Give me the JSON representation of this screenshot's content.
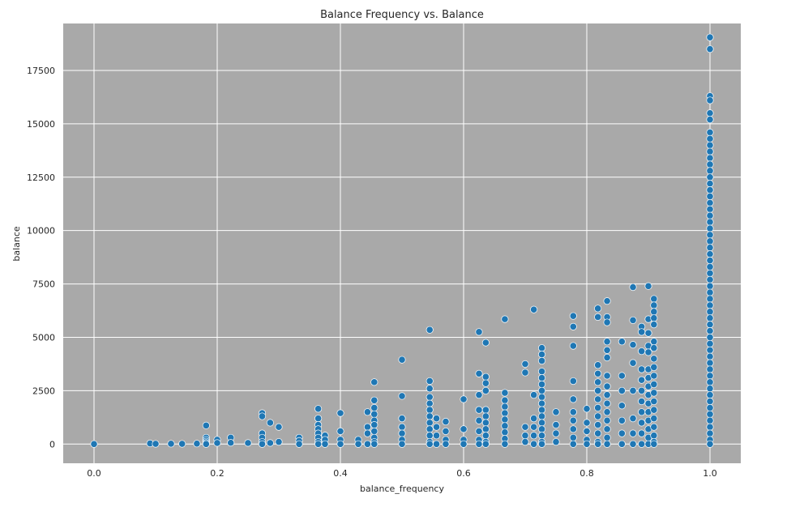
{
  "chart_data": {
    "type": "scatter",
    "title": "Balance Frequency vs. Balance",
    "xlabel": "balance_frequency",
    "ylabel": "balance",
    "xlim": [
      -0.05,
      1.05
    ],
    "ylim": [
      -900,
      19700
    ],
    "xticks": [
      0.0,
      0.2,
      0.4,
      0.6,
      0.8,
      1.0
    ],
    "xtick_labels": [
      "0.0",
      "0.2",
      "0.4",
      "0.6",
      "0.8",
      "1.0"
    ],
    "yticks": [
      0,
      2500,
      5000,
      7500,
      10000,
      12500,
      15000,
      17500
    ],
    "ytick_labels": [
      "0",
      "2500",
      "5000",
      "7500",
      "10000",
      "12500",
      "15000",
      "17500"
    ],
    "grid": true,
    "colors": {
      "background": "#a9a9a9",
      "grid": "#ffffff",
      "marker": "#1f77b4",
      "marker_edge": "#ffffff"
    },
    "series": [
      {
        "points": [
          [
            0.0,
            0
          ],
          [
            0.091,
            30
          ],
          [
            0.1,
            10
          ],
          [
            0.125,
            15
          ],
          [
            0.143,
            10
          ],
          [
            0.167,
            20
          ],
          [
            0.182,
            870
          ],
          [
            0.182,
            300
          ],
          [
            0.182,
            200
          ],
          [
            0.182,
            120
          ],
          [
            0.182,
            50
          ],
          [
            0.182,
            0
          ],
          [
            0.2,
            200
          ],
          [
            0.2,
            50
          ],
          [
            0.222,
            300
          ],
          [
            0.222,
            60
          ],
          [
            0.25,
            50
          ],
          [
            0.273,
            1450
          ],
          [
            0.273,
            1300
          ],
          [
            0.273,
            500
          ],
          [
            0.273,
            300
          ],
          [
            0.273,
            100
          ],
          [
            0.273,
            0
          ],
          [
            0.286,
            1000
          ],
          [
            0.286,
            50
          ],
          [
            0.3,
            800
          ],
          [
            0.3,
            100
          ],
          [
            0.333,
            300
          ],
          [
            0.333,
            150
          ],
          [
            0.333,
            0
          ],
          [
            0.364,
            1650
          ],
          [
            0.364,
            1200
          ],
          [
            0.364,
            900
          ],
          [
            0.364,
            700
          ],
          [
            0.364,
            500
          ],
          [
            0.364,
            300
          ],
          [
            0.364,
            100
          ],
          [
            0.364,
            0
          ],
          [
            0.375,
            400
          ],
          [
            0.375,
            200
          ],
          [
            0.375,
            0
          ],
          [
            0.4,
            1450
          ],
          [
            0.4,
            600
          ],
          [
            0.4,
            200
          ],
          [
            0.4,
            0
          ],
          [
            0.429,
            200
          ],
          [
            0.429,
            0
          ],
          [
            0.444,
            1500
          ],
          [
            0.444,
            800
          ],
          [
            0.444,
            500
          ],
          [
            0.444,
            0
          ],
          [
            0.455,
            2900
          ],
          [
            0.455,
            2050
          ],
          [
            0.455,
            1700
          ],
          [
            0.455,
            1400
          ],
          [
            0.455,
            1100
          ],
          [
            0.455,
            900
          ],
          [
            0.455,
            600
          ],
          [
            0.455,
            300
          ],
          [
            0.455,
            100
          ],
          [
            0.455,
            0
          ],
          [
            0.5,
            3950
          ],
          [
            0.5,
            2250
          ],
          [
            0.5,
            1200
          ],
          [
            0.5,
            800
          ],
          [
            0.5,
            500
          ],
          [
            0.5,
            200
          ],
          [
            0.5,
            0
          ],
          [
            0.545,
            5350
          ],
          [
            0.545,
            2950
          ],
          [
            0.545,
            2600
          ],
          [
            0.545,
            2200
          ],
          [
            0.545,
            1900
          ],
          [
            0.545,
            1600
          ],
          [
            0.545,
            1300
          ],
          [
            0.545,
            1000
          ],
          [
            0.545,
            700
          ],
          [
            0.545,
            400
          ],
          [
            0.545,
            100
          ],
          [
            0.545,
            0
          ],
          [
            0.556,
            1200
          ],
          [
            0.556,
            800
          ],
          [
            0.556,
            400
          ],
          [
            0.556,
            0
          ],
          [
            0.571,
            1050
          ],
          [
            0.571,
            600
          ],
          [
            0.571,
            200
          ],
          [
            0.571,
            0
          ],
          [
            0.6,
            2100
          ],
          [
            0.6,
            700
          ],
          [
            0.6,
            200
          ],
          [
            0.6,
            0
          ],
          [
            0.625,
            5250
          ],
          [
            0.625,
            3300
          ],
          [
            0.625,
            2300
          ],
          [
            0.625,
            1600
          ],
          [
            0.625,
            1100
          ],
          [
            0.625,
            600
          ],
          [
            0.625,
            200
          ],
          [
            0.625,
            0
          ],
          [
            0.636,
            4750
          ],
          [
            0.636,
            3150
          ],
          [
            0.636,
            2850
          ],
          [
            0.636,
            2500
          ],
          [
            0.636,
            1600
          ],
          [
            0.636,
            1300
          ],
          [
            0.636,
            1000
          ],
          [
            0.636,
            700
          ],
          [
            0.636,
            400
          ],
          [
            0.636,
            100
          ],
          [
            0.636,
            0
          ],
          [
            0.667,
            5850
          ],
          [
            0.667,
            2400
          ],
          [
            0.667,
            2050
          ],
          [
            0.667,
            1750
          ],
          [
            0.667,
            1450
          ],
          [
            0.667,
            1150
          ],
          [
            0.667,
            850
          ],
          [
            0.667,
            550
          ],
          [
            0.667,
            250
          ],
          [
            0.667,
            0
          ],
          [
            0.7,
            3750
          ],
          [
            0.7,
            3350
          ],
          [
            0.7,
            800
          ],
          [
            0.7,
            400
          ],
          [
            0.7,
            100
          ],
          [
            0.714,
            6300
          ],
          [
            0.714,
            2300
          ],
          [
            0.714,
            1200
          ],
          [
            0.714,
            800
          ],
          [
            0.714,
            400
          ],
          [
            0.714,
            0
          ],
          [
            0.727,
            4500
          ],
          [
            0.727,
            4200
          ],
          [
            0.727,
            3900
          ],
          [
            0.727,
            3400
          ],
          [
            0.727,
            3100
          ],
          [
            0.727,
            2800
          ],
          [
            0.727,
            2500
          ],
          [
            0.727,
            2200
          ],
          [
            0.727,
            1900
          ],
          [
            0.727,
            1600
          ],
          [
            0.727,
            1300
          ],
          [
            0.727,
            1000
          ],
          [
            0.727,
            700
          ],
          [
            0.727,
            400
          ],
          [
            0.727,
            100
          ],
          [
            0.727,
            0
          ],
          [
            0.75,
            1500
          ],
          [
            0.75,
            900
          ],
          [
            0.75,
            500
          ],
          [
            0.75,
            100
          ],
          [
            0.778,
            6000
          ],
          [
            0.778,
            5500
          ],
          [
            0.778,
            4600
          ],
          [
            0.778,
            2950
          ],
          [
            0.778,
            2100
          ],
          [
            0.778,
            1500
          ],
          [
            0.778,
            1100
          ],
          [
            0.778,
            700
          ],
          [
            0.778,
            300
          ],
          [
            0.778,
            0
          ],
          [
            0.8,
            1650
          ],
          [
            0.8,
            1000
          ],
          [
            0.8,
            600
          ],
          [
            0.8,
            200
          ],
          [
            0.8,
            0
          ],
          [
            0.818,
            6350
          ],
          [
            0.818,
            5950
          ],
          [
            0.818,
            3700
          ],
          [
            0.818,
            3300
          ],
          [
            0.818,
            2900
          ],
          [
            0.818,
            2500
          ],
          [
            0.818,
            2100
          ],
          [
            0.818,
            1700
          ],
          [
            0.818,
            1300
          ],
          [
            0.818,
            900
          ],
          [
            0.818,
            500
          ],
          [
            0.818,
            100
          ],
          [
            0.818,
            0
          ],
          [
            0.833,
            6700
          ],
          [
            0.833,
            5950
          ],
          [
            0.833,
            5700
          ],
          [
            0.833,
            4800
          ],
          [
            0.833,
            4400
          ],
          [
            0.833,
            4050
          ],
          [
            0.833,
            3200
          ],
          [
            0.833,
            2700
          ],
          [
            0.833,
            2300
          ],
          [
            0.833,
            1900
          ],
          [
            0.833,
            1500
          ],
          [
            0.833,
            1100
          ],
          [
            0.833,
            700
          ],
          [
            0.833,
            300
          ],
          [
            0.833,
            0
          ],
          [
            0.857,
            4800
          ],
          [
            0.857,
            3200
          ],
          [
            0.857,
            2500
          ],
          [
            0.857,
            1800
          ],
          [
            0.857,
            1100
          ],
          [
            0.857,
            500
          ],
          [
            0.857,
            0
          ],
          [
            0.875,
            7350
          ],
          [
            0.875,
            5800
          ],
          [
            0.875,
            4650
          ],
          [
            0.875,
            3800
          ],
          [
            0.875,
            2500
          ],
          [
            0.875,
            1200
          ],
          [
            0.875,
            500
          ],
          [
            0.875,
            0
          ],
          [
            0.889,
            5500
          ],
          [
            0.889,
            5250
          ],
          [
            0.889,
            4350
          ],
          [
            0.889,
            3500
          ],
          [
            0.889,
            3000
          ],
          [
            0.889,
            2500
          ],
          [
            0.889,
            2000
          ],
          [
            0.889,
            1500
          ],
          [
            0.889,
            1000
          ],
          [
            0.889,
            500
          ],
          [
            0.889,
            0
          ],
          [
            0.9,
            7400
          ],
          [
            0.9,
            5850
          ],
          [
            0.9,
            5200
          ],
          [
            0.9,
            4600
          ],
          [
            0.9,
            4300
          ],
          [
            0.9,
            3500
          ],
          [
            0.9,
            3100
          ],
          [
            0.9,
            2700
          ],
          [
            0.9,
            2300
          ],
          [
            0.9,
            1900
          ],
          [
            0.9,
            1500
          ],
          [
            0.9,
            1100
          ],
          [
            0.9,
            700
          ],
          [
            0.9,
            300
          ],
          [
            0.9,
            0
          ],
          [
            0.909,
            6800
          ],
          [
            0.909,
            6500
          ],
          [
            0.909,
            6200
          ],
          [
            0.909,
            5900
          ],
          [
            0.909,
            5600
          ],
          [
            0.909,
            4800
          ],
          [
            0.909,
            4500
          ],
          [
            0.909,
            4000
          ],
          [
            0.909,
            3600
          ],
          [
            0.909,
            3200
          ],
          [
            0.909,
            2800
          ],
          [
            0.909,
            2400
          ],
          [
            0.909,
            2000
          ],
          [
            0.909,
            1600
          ],
          [
            0.909,
            1200
          ],
          [
            0.909,
            800
          ],
          [
            0.909,
            400
          ],
          [
            0.909,
            100
          ],
          [
            0.909,
            0
          ],
          [
            1.0,
            19050
          ],
          [
            1.0,
            18500
          ],
          [
            1.0,
            16300
          ],
          [
            1.0,
            16100
          ],
          [
            1.0,
            15500
          ],
          [
            1.0,
            15200
          ],
          [
            1.0,
            14600
          ],
          [
            1.0,
            14300
          ],
          [
            1.0,
            14000
          ],
          [
            1.0,
            13700
          ],
          [
            1.0,
            13400
          ],
          [
            1.0,
            13100
          ],
          [
            1.0,
            12800
          ],
          [
            1.0,
            12500
          ],
          [
            1.0,
            12200
          ],
          [
            1.0,
            11900
          ],
          [
            1.0,
            11600
          ],
          [
            1.0,
            11300
          ],
          [
            1.0,
            11000
          ],
          [
            1.0,
            10700
          ],
          [
            1.0,
            10400
          ],
          [
            1.0,
            10100
          ],
          [
            1.0,
            9800
          ],
          [
            1.0,
            9500
          ],
          [
            1.0,
            9200
          ],
          [
            1.0,
            8900
          ],
          [
            1.0,
            8600
          ],
          [
            1.0,
            8300
          ],
          [
            1.0,
            8000
          ],
          [
            1.0,
            7700
          ],
          [
            1.0,
            7400
          ],
          [
            1.0,
            7100
          ],
          [
            1.0,
            6800
          ],
          [
            1.0,
            6500
          ],
          [
            1.0,
            6200
          ],
          [
            1.0,
            5900
          ],
          [
            1.0,
            5600
          ],
          [
            1.0,
            5300
          ],
          [
            1.0,
            5000
          ],
          [
            1.0,
            4700
          ],
          [
            1.0,
            4400
          ],
          [
            1.0,
            4100
          ],
          [
            1.0,
            3800
          ],
          [
            1.0,
            3500
          ],
          [
            1.0,
            3200
          ],
          [
            1.0,
            2900
          ],
          [
            1.0,
            2600
          ],
          [
            1.0,
            2300
          ],
          [
            1.0,
            2000
          ],
          [
            1.0,
            1700
          ],
          [
            1.0,
            1400
          ],
          [
            1.0,
            1100
          ],
          [
            1.0,
            800
          ],
          [
            1.0,
            500
          ],
          [
            1.0,
            200
          ],
          [
            1.0,
            0
          ]
        ]
      }
    ]
  }
}
